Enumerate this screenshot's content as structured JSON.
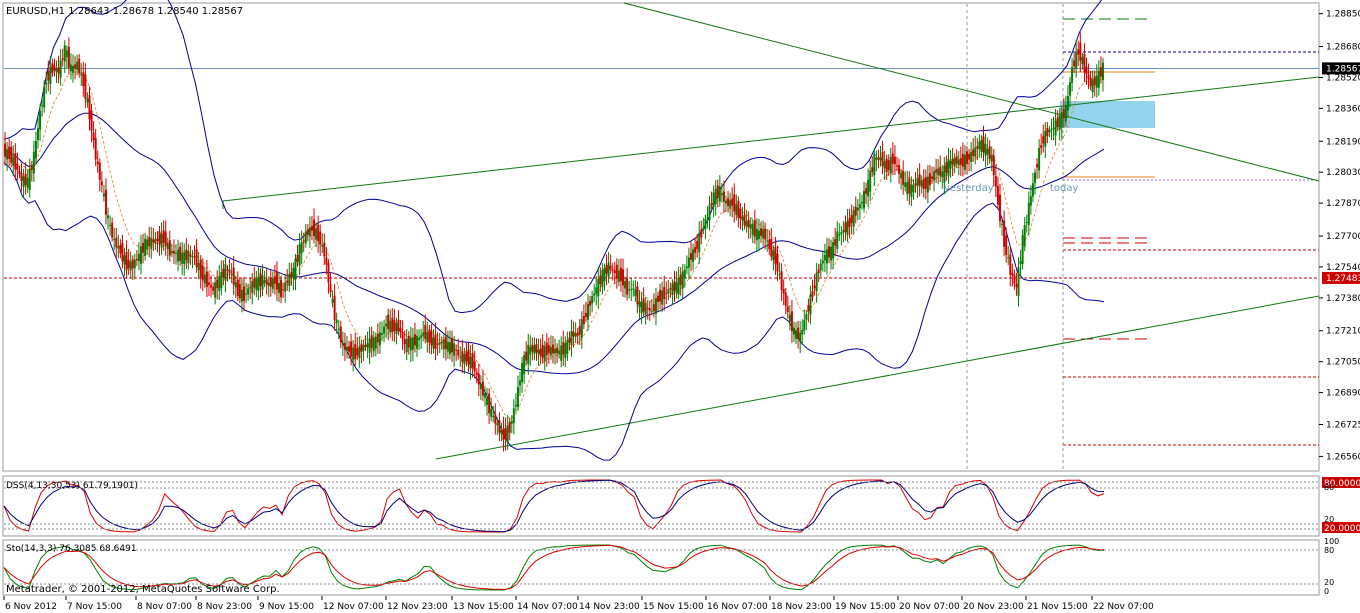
{
  "window": {
    "header": "EURUSD,H1  1.28643 1.28678 1.28540 1.28567",
    "copyright": "Metatrader, © 2001-2012, MetaQuotes Software Corp."
  },
  "colors": {
    "bull": "#008000",
    "bear": "#d40000",
    "band": "#000099",
    "trendline": "#117711",
    "dss": "#000080",
    "dss_signal": "#dd0000",
    "stoch_main": "#008000",
    "stoch_signal": "#dd0000",
    "zone": "#87ceeb",
    "level_red": "#cc0000",
    "level_orange": "#e08020"
  },
  "chart_data": {
    "type": "candlestick",
    "symbol": "EURUSD",
    "timeframe": "H1",
    "quote": {
      "open": 1.28643,
      "high": 1.28678,
      "low": 1.2854,
      "close": 1.28567
    },
    "ylim": [
      1.265,
      1.289
    ],
    "y_ticks": [
      "1.28850",
      "1.28680",
      "1.28520",
      "1.28360",
      "1.28190",
      "1.28030",
      "1.27870",
      "1.27700",
      "1.27540",
      "1.27380",
      "1.27210",
      "1.27050",
      "1.26890",
      "1.26725",
      "1.26560"
    ],
    "current_price": "1.28567",
    "marked_level": "1.27483",
    "x_labels": [
      "6 Nov 2012",
      "7 Nov 15:00",
      "8 Nov 07:00",
      "8 Nov 23:00",
      "9 Nov 15:00",
      "12 Nov 07:00",
      "12 Nov 23:00",
      "13 Nov 15:00",
      "14 Nov 07:00",
      "14 Nov 23:00",
      "15 Nov 15:00",
      "16 Nov 07:00",
      "18 Nov 23:00",
      "19 Nov 15:00",
      "20 Nov 07:00",
      "20 Nov 23:00",
      "21 Nov 15:00",
      "22 Nov 07:00"
    ],
    "closes": [
      1.2814,
      1.2812,
      1.2807,
      1.2799,
      1.2798,
      1.2811,
      1.2834,
      1.2851,
      1.2857,
      1.2855,
      1.2867,
      1.2856,
      1.2859,
      1.2849,
      1.2833,
      1.2811,
      1.2795,
      1.2778,
      1.2767,
      1.2762,
      1.2755,
      1.2755,
      1.276,
      1.2766,
      1.2767,
      1.2768,
      1.2769,
      1.2762,
      1.2761,
      1.2759,
      1.276,
      1.2759,
      1.2751,
      1.2746,
      1.2742,
      1.2747,
      1.2753,
      1.275,
      1.2741,
      1.2739,
      1.2744,
      1.2746,
      1.2747,
      1.2745,
      1.2747,
      1.2741,
      1.2747,
      1.2752,
      1.2763,
      1.2771,
      1.2774,
      1.277,
      1.2761,
      1.274,
      1.2724,
      1.2713,
      1.2711,
      1.2709,
      1.2712,
      1.2714,
      1.2715,
      1.2718,
      1.2725,
      1.2723,
      1.2723,
      1.2714,
      1.2715,
      1.2716,
      1.272,
      1.2717,
      1.2714,
      1.2715,
      1.2713,
      1.2712,
      1.2707,
      1.2707,
      1.2704,
      1.2694,
      1.2687,
      1.2678,
      1.2672,
      1.2666,
      1.2671,
      1.2684,
      1.2703,
      1.2711,
      1.2712,
      1.2709,
      1.2711,
      1.2711,
      1.271,
      1.2712,
      1.2719,
      1.2719,
      1.2727,
      1.2736,
      1.2743,
      1.275,
      1.2754,
      1.2751,
      1.2749,
      1.2742,
      1.2743,
      1.2734,
      1.2733,
      1.2731,
      1.2738,
      1.274,
      1.2743,
      1.2744,
      1.2749,
      1.2758,
      1.2763,
      1.2772,
      1.2781,
      1.2791,
      1.2793,
      1.2787,
      1.2787,
      1.2782,
      1.2777,
      1.2775,
      1.2771,
      1.2772,
      1.2764,
      1.2758,
      1.2744,
      1.273,
      1.272,
      1.2718,
      1.273,
      1.2741,
      1.2753,
      1.276,
      1.2762,
      1.277,
      1.2773,
      1.2777,
      1.2783,
      1.2788,
      1.2797,
      1.281,
      1.281,
      1.2805,
      1.281,
      1.2803,
      1.2796,
      1.2794,
      1.2799,
      1.2796,
      1.2799,
      1.2804,
      1.2802,
      1.2807,
      1.2809,
      1.2808,
      1.281,
      1.2813,
      1.2818,
      1.2815,
      1.281,
      1.2787,
      1.2767,
      1.2752,
      1.2743,
      1.2768,
      1.2785,
      1.2803,
      1.2818,
      1.2824,
      1.2826,
      1.283,
      1.2835,
      1.2857,
      1.2866,
      1.2857,
      1.2848,
      1.2851,
      1.2857
    ]
  },
  "annotations": {
    "yesterday": "yesterday",
    "today": "today"
  },
  "dss": {
    "label": "DSS(4,13,30,53) 61.79,1901)",
    "ticks": [
      "80.0000",
      "20.0000"
    ],
    "levels": [
      "80",
      "20"
    ]
  },
  "stoch": {
    "label": "Sto(14,3,3) 76.3085 68.6491",
    "ticks": [
      "100",
      "80",
      "20",
      "0"
    ]
  }
}
